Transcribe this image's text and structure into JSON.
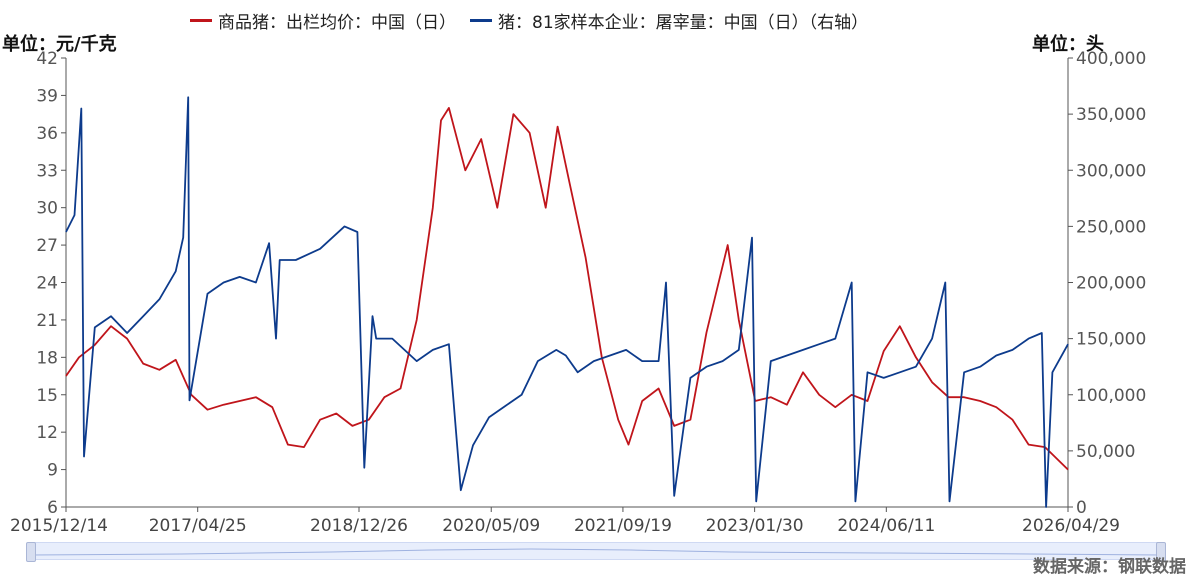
{
  "legend": {
    "series1": "商品猪：出栏均价：中国（日）",
    "series2": "猪：81家样本企业：屠宰量：中国（日）（右轴）"
  },
  "units": {
    "left": "单位：元/千克",
    "right": "单位：头"
  },
  "source": "数据来源：钢联数据",
  "colors": {
    "series1": "#c0151b",
    "series2": "#0d3b8c",
    "axis": "#555555"
  },
  "chart_data": {
    "type": "line",
    "x_ticks": [
      "2015/12/14",
      "2017/04/25",
      "2018/12/26",
      "2020/05/09",
      "2021/09/19",
      "2023/01/30",
      "2024/06/11",
      "2026/04/29"
    ],
    "x_range": [
      "2015/12/14",
      "2026/04/29"
    ],
    "y_left": {
      "ticks": [
        6,
        9,
        12,
        15,
        18,
        21,
        24,
        27,
        30,
        33,
        36,
        39,
        42
      ],
      "range": [
        6,
        42
      ]
    },
    "y_right": {
      "ticks": [
        "0",
        "50,000",
        "100,000",
        "150,000",
        "200,000",
        "250,000",
        "300,000",
        "350,000",
        "400,000"
      ],
      "range": [
        0,
        400000
      ]
    },
    "series": [
      {
        "name": "商品猪：出栏均价：中国（日）",
        "axis": "left",
        "x": [
          "2015/12/14",
          "2016/02/01",
          "2016/04/01",
          "2016/06/01",
          "2016/08/01",
          "2016/10/01",
          "2016/12/01",
          "2017/02/01",
          "2017/04/01",
          "2017/06/01",
          "2017/08/01",
          "2017/10/01",
          "2017/12/01",
          "2018/02/01",
          "2018/04/01",
          "2018/06/01",
          "2018/08/01",
          "2018/10/01",
          "2018/12/01",
          "2019/02/01",
          "2019/04/01",
          "2019/06/01",
          "2019/08/01",
          "2019/10/01",
          "2019/11/01",
          "2019/12/01",
          "2020/02/01",
          "2020/04/01",
          "2020/06/01",
          "2020/08/01",
          "2020/10/01",
          "2020/12/01",
          "2021/01/15",
          "2021/03/01",
          "2021/05/01",
          "2021/07/01",
          "2021/09/01",
          "2021/10/10",
          "2021/12/01",
          "2022/02/01",
          "2022/04/01",
          "2022/06/01",
          "2022/08/01",
          "2022/10/20",
          "2022/12/01",
          "2023/02/01",
          "2023/04/01",
          "2023/06/01",
          "2023/08/01",
          "2023/10/01",
          "2023/12/01",
          "2024/02/01",
          "2024/04/01",
          "2024/06/01",
          "2024/08/01",
          "2024/10/01",
          "2024/12/01",
          "2025/02/01",
          "2025/04/01",
          "2025/06/01",
          "2025/08/01",
          "2025/10/01",
          "2025/12/01",
          "2026/02/01",
          "2026/04/29"
        ],
        "y": [
          16.5,
          18.0,
          19.0,
          20.5,
          19.5,
          17.5,
          17.0,
          17.8,
          15.0,
          13.8,
          14.2,
          14.5,
          14.8,
          14.0,
          11.0,
          10.8,
          13.0,
          13.5,
          12.5,
          13.0,
          14.8,
          15.5,
          21.0,
          30.0,
          37.0,
          38.0,
          33.0,
          35.5,
          30.0,
          37.5,
          36.0,
          30.0,
          36.5,
          32.0,
          26.0,
          18.0,
          13.0,
          11.0,
          14.5,
          15.5,
          12.5,
          13.0,
          20.0,
          27.0,
          21.0,
          14.5,
          14.8,
          14.2,
          16.8,
          15.0,
          14.0,
          15.0,
          14.5,
          18.5,
          20.5,
          18.0,
          16.0,
          14.8,
          14.8,
          14.5,
          14.0,
          13.0,
          11.0,
          10.8,
          9.0
        ]
      },
      {
        "name": "猪：81家样本企业：屠宰量：中国（日）（右轴）",
        "axis": "right",
        "x": [
          "2015/12/14",
          "2016/01/15",
          "2016/02/10",
          "2016/02/20",
          "2016/04/01",
          "2016/06/01",
          "2016/08/01",
          "2016/10/01",
          "2016/12/01",
          "2017/02/01",
          "2017/03/01",
          "2017/03/20",
          "2017/03/25",
          "2017/06/01",
          "2017/08/01",
          "2017/10/01",
          "2017/12/01",
          "2018/01/20",
          "2018/02/15",
          "2018/03/01",
          "2018/05/01",
          "2018/08/01",
          "2018/11/01",
          "2018/12/20",
          "2019/01/15",
          "2019/02/15",
          "2019/03/01",
          "2019/05/01",
          "2019/08/01",
          "2019/10/01",
          "2019/12/01",
          "2020/01/15",
          "2020/03/01",
          "2020/05/01",
          "2020/07/01",
          "2020/09/01",
          "2020/11/01",
          "2021/01/10",
          "2021/02/15",
          "2021/04/01",
          "2021/06/01",
          "2021/08/01",
          "2021/10/01",
          "2021/12/01",
          "2022/02/01",
          "2022/03/01",
          "2022/04/01",
          "2022/06/01",
          "2022/08/01",
          "2022/10/01",
          "2022/12/01",
          "2023/01/20",
          "2023/02/05",
          "2023/04/01",
          "2023/06/01",
          "2023/08/01",
          "2023/10/01",
          "2023/12/01",
          "2024/02/01",
          "2024/02/15",
          "2024/04/01",
          "2024/06/01",
          "2024/08/01",
          "2024/10/01",
          "2024/12/01",
          "2025/01/20",
          "2025/02/05",
          "2025/04/01",
          "2025/06/01",
          "2025/08/01",
          "2025/10/01",
          "2025/12/01",
          "2026/01/20",
          "2026/02/05",
          "2026/03/01",
          "2026/04/29"
        ],
        "y": [
          245000,
          260000,
          355000,
          45000,
          160000,
          170000,
          155000,
          170000,
          185000,
          210000,
          240000,
          365000,
          95000,
          190000,
          200000,
          205000,
          200000,
          235000,
          150000,
          220000,
          220000,
          230000,
          250000,
          245000,
          35000,
          170000,
          150000,
          150000,
          130000,
          140000,
          145000,
          15000,
          55000,
          80000,
          90000,
          100000,
          130000,
          140000,
          135000,
          120000,
          130000,
          135000,
          140000,
          130000,
          130000,
          200000,
          10000,
          115000,
          125000,
          130000,
          140000,
          240000,
          5000,
          130000,
          135000,
          140000,
          145000,
          150000,
          200000,
          5000,
          120000,
          115000,
          120000,
          125000,
          150000,
          200000,
          5000,
          120000,
          125000,
          135000,
          140000,
          150000,
          155000,
          0,
          120000,
          145000
        ]
      }
    ],
    "grid": false,
    "legend_position": "top"
  }
}
